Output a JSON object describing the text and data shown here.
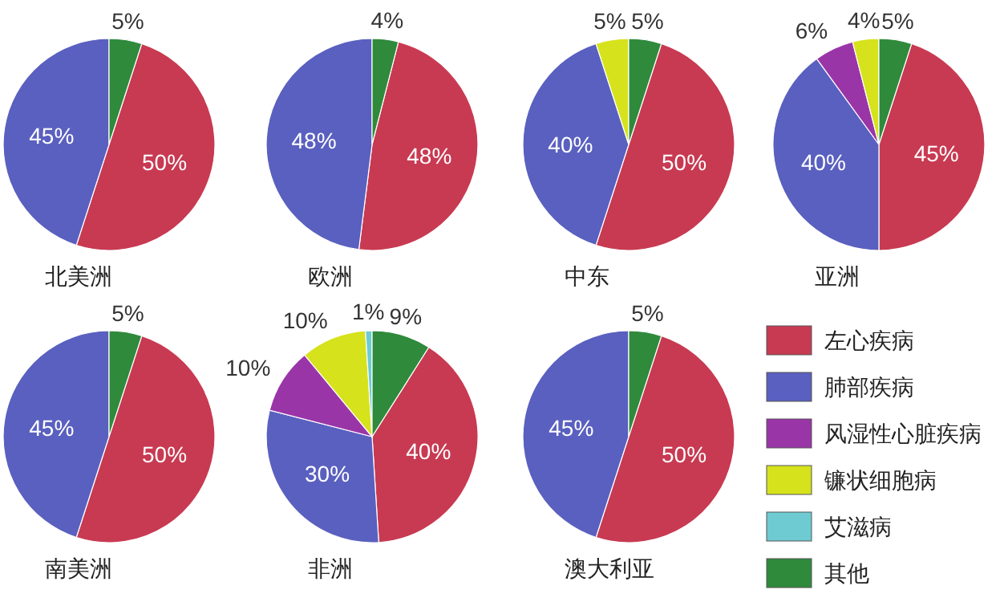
{
  "chart_data": [
    {
      "type": "pie",
      "title": "北美洲",
      "categories": [
        null,
        null,
        null
      ],
      "values": [
        50,
        45,
        5
      ],
      "value_labels": [
        "50%",
        "45%",
        "5%"
      ],
      "colors": [
        "#c83a52",
        "#5a60bf",
        "#2f8a3c"
      ]
    },
    {
      "type": "pie",
      "title": "欧洲",
      "categories": [
        null,
        null,
        null
      ],
      "values": [
        48,
        48,
        4
      ],
      "value_labels": [
        "48%",
        "48%",
        "4%"
      ],
      "colors": [
        "#c83a52",
        "#5a60bf",
        "#2f8a3c"
      ]
    },
    {
      "type": "pie",
      "title": "中东",
      "categories": [
        null,
        null,
        null,
        null
      ],
      "values": [
        50,
        40,
        5,
        5
      ],
      "value_labels": [
        "50%",
        "40%",
        "5%",
        "5%"
      ],
      "colors": [
        "#c83a52",
        "#5a60bf",
        "#d6e21c",
        "#2f8a3c"
      ]
    },
    {
      "type": "pie",
      "title": "亚洲",
      "categories": [
        null,
        null,
        null,
        null,
        null
      ],
      "values": [
        45,
        40,
        6,
        4,
        5
      ],
      "value_labels": [
        "45%",
        "40%",
        "6%",
        "4%",
        "5%"
      ],
      "colors": [
        "#c83a52",
        "#5a60bf",
        "#9a35a8",
        "#d6e21c",
        "#2f8a3c"
      ]
    },
    {
      "type": "pie",
      "title": "南美洲",
      "categories": [
        null,
        null,
        null
      ],
      "values": [
        50,
        45,
        5
      ],
      "value_labels": [
        "50%",
        "45%",
        "5%"
      ],
      "colors": [
        "#c83a52",
        "#5a60bf",
        "#2f8a3c"
      ]
    },
    {
      "type": "pie",
      "title": "非洲",
      "categories": [
        "左心疾病",
        "肺部疾病",
        "风湿性心脏疾病",
        "镰状细胞病",
        "艾滋病",
        "其他"
      ],
      "values": [
        40,
        30,
        10,
        10,
        1,
        9
      ],
      "value_labels": [
        "40%",
        "30%",
        "10%",
        "10%",
        "1%",
        "9%"
      ],
      "colors": [
        "#c83a52",
        "#5a60bf",
        "#9a35a8",
        "#d6e21c",
        "#6ecbd2",
        "#2f8a3c"
      ],
      "legend": "right"
    },
    {
      "type": "pie",
      "title": "澳大利亚",
      "categories": [
        null,
        null,
        null
      ],
      "values": [
        50,
        45,
        5
      ],
      "value_labels": [
        "50%",
        "45%",
        "5%"
      ],
      "colors": [
        "#c83a52",
        "#5a60bf",
        "#2f8a3c"
      ]
    }
  ]
}
